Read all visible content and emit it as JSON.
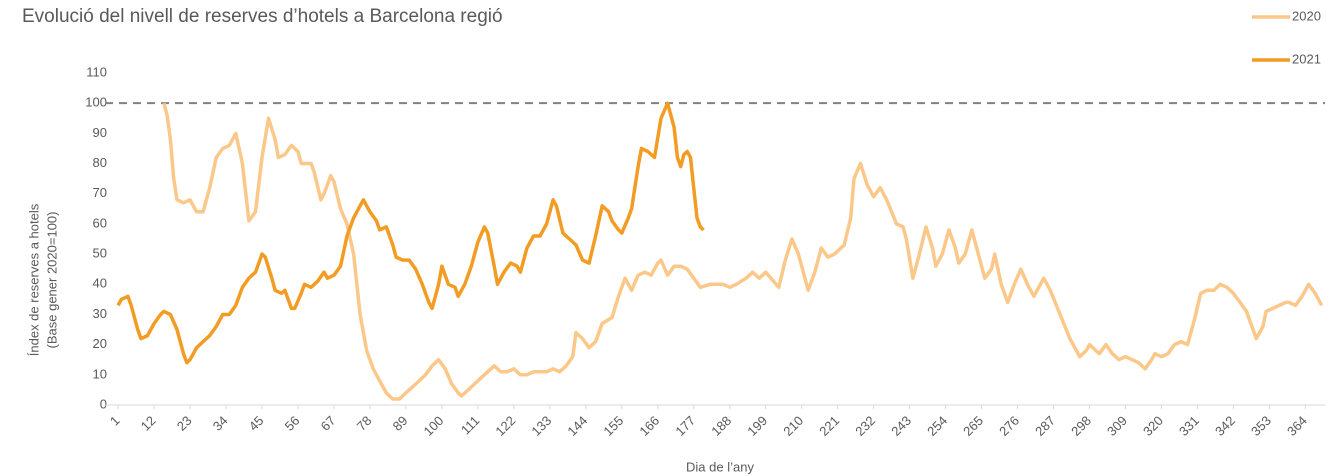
{
  "chart_data": {
    "type": "line",
    "title": "Evolució del nivell de reserves d’hotels a Barcelona regió",
    "x_label": "Dia de l’any",
    "y_label": [
      "Índex de reserves a hotels",
      "(Base gener 2020=100)"
    ],
    "xlim": [
      -3,
      370
    ],
    "ylim": [
      0,
      110
    ],
    "xticks": [
      1,
      12,
      23,
      34,
      45,
      56,
      67,
      78,
      89,
      100,
      111,
      122,
      133,
      144,
      155,
      166,
      177,
      188,
      199,
      210,
      221,
      232,
      243,
      254,
      265,
      276,
      287,
      298,
      309,
      320,
      331,
      342,
      353,
      364
    ],
    "yticks": [
      0,
      10,
      20,
      30,
      40,
      50,
      60,
      70,
      80,
      90,
      100,
      110
    ],
    "reference_line": 100,
    "legend": "top-right",
    "series": [
      {
        "name": "2020",
        "color": "#fbc88a",
        "x": [
          15,
          16,
          17,
          18,
          19,
          21,
          23,
          25,
          27,
          29,
          31,
          33,
          35,
          37,
          39,
          41,
          43,
          45,
          47,
          49,
          50,
          52,
          54,
          56,
          57,
          58,
          60,
          61,
          63,
          64,
          66,
          67,
          69,
          71,
          73,
          75,
          77,
          79,
          81,
          83,
          85,
          87,
          89,
          91,
          93,
          95,
          97,
          99,
          101,
          103,
          105,
          106,
          108,
          110,
          112,
          114,
          116,
          118,
          120,
          122,
          124,
          126,
          128,
          130,
          132,
          134,
          136,
          138,
          140,
          141,
          143,
          145,
          147,
          149,
          152,
          154,
          156,
          158,
          160,
          162,
          164,
          166,
          167,
          169,
          171,
          173,
          175,
          177,
          179,
          182,
          186,
          188,
          190,
          193,
          195,
          197,
          199,
          203,
          205,
          207,
          209,
          212,
          214,
          216,
          218,
          220,
          223,
          225,
          226,
          228,
          230,
          232,
          234,
          236,
          239,
          241,
          242,
          244,
          246,
          248,
          250,
          251,
          253,
          255,
          257,
          258,
          260,
          262,
          264,
          266,
          268,
          269,
          271,
          273,
          275,
          277,
          279,
          281,
          283,
          284,
          286,
          289,
          292,
          294,
          295,
          297,
          298,
          300,
          301,
          303,
          305,
          307,
          309,
          311,
          313,
          315,
          317,
          318,
          320,
          322,
          324,
          326,
          328,
          330,
          332,
          334,
          336,
          338,
          340,
          342,
          344,
          346,
          348,
          349,
          351,
          352,
          354,
          356,
          358,
          359,
          361,
          363,
          365,
          367,
          369
        ],
        "values": [
          100,
          96,
          88,
          75,
          68,
          67,
          68,
          64,
          64,
          72,
          82,
          85,
          86,
          90,
          80,
          61,
          64,
          82,
          95,
          88,
          82,
          83,
          86,
          84,
          80,
          80,
          80,
          77,
          68,
          70,
          76,
          74,
          65,
          60,
          50,
          30,
          18,
          12,
          8,
          4,
          2,
          2,
          4,
          6,
          8,
          10,
          13,
          15,
          12,
          7,
          4,
          3,
          5,
          7,
          9,
          11,
          13,
          11,
          11,
          12,
          10,
          10,
          11,
          11,
          11,
          12,
          11,
          13,
          16,
          24,
          22,
          19,
          21,
          27,
          29,
          36,
          42,
          38,
          43,
          44,
          43,
          47,
          48,
          43,
          46,
          46,
          45,
          42,
          39,
          40,
          40,
          39,
          40,
          42,
          44,
          42,
          44,
          39,
          48,
          55,
          50,
          38,
          44,
          52,
          49,
          50,
          53,
          62,
          75,
          80,
          73,
          69,
          72,
          68,
          60,
          59,
          55,
          42,
          50,
          59,
          52,
          46,
          50,
          58,
          52,
          47,
          50,
          58,
          50,
          42,
          45,
          50,
          40,
          34,
          40,
          45,
          40,
          36,
          40,
          42,
          38,
          30,
          22,
          18,
          16,
          18,
          20,
          18,
          17,
          20,
          17,
          15,
          16,
          15,
          14,
          12,
          15,
          17,
          16,
          17,
          20,
          21,
          20,
          28,
          37,
          38,
          38,
          40,
          39,
          37,
          34,
          31,
          25,
          22,
          26,
          31,
          32,
          33,
          34,
          34,
          33,
          36,
          40,
          37,
          33
        ]
      },
      {
        "name": "2021",
        "color": "#f39c23",
        "x": [
          1,
          2,
          4,
          5,
          7,
          8,
          10,
          12,
          14,
          15,
          17,
          19,
          21,
          22,
          23,
          25,
          27,
          29,
          31,
          33,
          35,
          37,
          39,
          41,
          43,
          45,
          46,
          48,
          49,
          51,
          52,
          54,
          55,
          57,
          58,
          60,
          62,
          64,
          65,
          67,
          69,
          71,
          73,
          75,
          76,
          78,
          80,
          81,
          83,
          85,
          86,
          88,
          90,
          92,
          94,
          96,
          97,
          99,
          100,
          102,
          104,
          105,
          107,
          109,
          111,
          113,
          114,
          116,
          117,
          119,
          121,
          123,
          124,
          126,
          128,
          130,
          132,
          134,
          135,
          137,
          139,
          141,
          143,
          145,
          147,
          149,
          151,
          152,
          154,
          155,
          157,
          158,
          160,
          161,
          163,
          165,
          167,
          169,
          171,
          172,
          173,
          174,
          175,
          176,
          177,
          178,
          179,
          180
        ],
        "values": [
          33,
          35,
          36,
          33,
          25,
          22,
          23,
          27,
          30,
          31,
          30,
          25,
          17,
          14,
          15,
          19,
          21,
          23,
          26,
          30,
          30,
          33,
          39,
          42,
          44,
          50,
          49,
          42,
          38,
          37,
          38,
          32,
          32,
          37,
          40,
          39,
          41,
          44,
          42,
          43,
          46,
          56,
          62,
          66,
          68,
          64,
          61,
          58,
          59,
          53,
          49,
          48,
          48,
          45,
          40,
          34,
          32,
          40,
          46,
          40,
          39,
          36,
          40,
          46,
          54,
          59,
          57,
          46,
          40,
          44,
          47,
          46,
          44,
          52,
          56,
          56,
          60,
          68,
          66,
          57,
          55,
          53,
          48,
          47,
          56,
          66,
          64,
          61,
          58,
          57,
          62,
          65,
          79,
          85,
          84,
          82,
          95,
          100,
          92,
          82,
          79,
          83,
          84,
          82,
          72,
          62,
          59,
          58
        ]
      }
    ]
  }
}
